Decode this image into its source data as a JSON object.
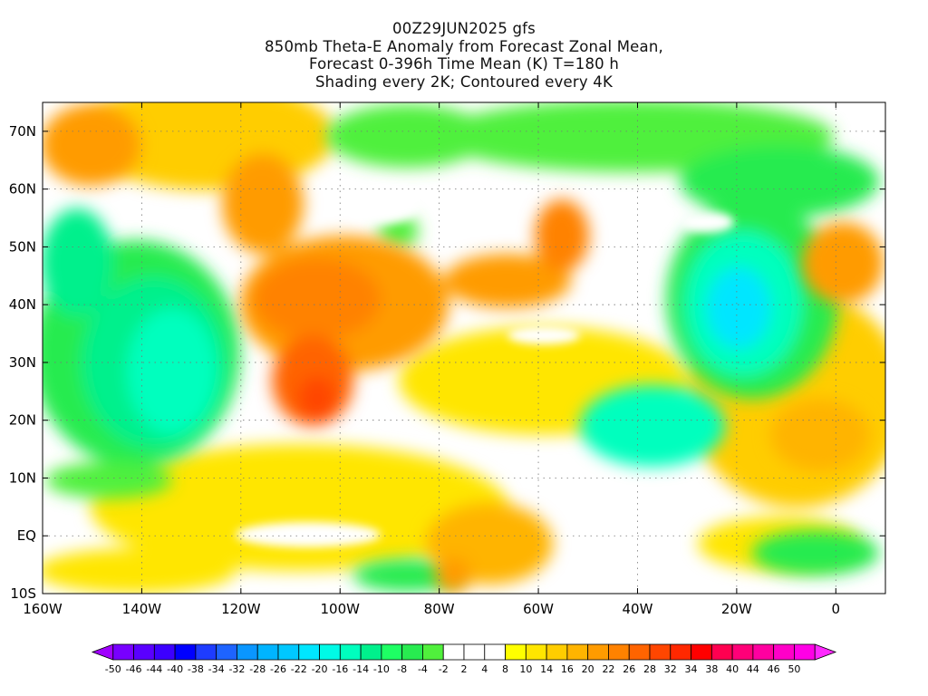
{
  "title_lines": [
    "00Z29JUN2025 gfs",
    "850mb Theta-E Anomaly from Forecast Zonal Mean,",
    "Forecast 0-396h Time Mean (K) T=180 h",
    "Shading every 2K; Contoured every 4K"
  ],
  "map": {
    "lat_labels": [
      "70N",
      "60N",
      "50N",
      "40N",
      "30N",
      "20N",
      "10N",
      "EQ",
      "10S"
    ],
    "lon_labels": [
      "160W",
      "140W",
      "120W",
      "100W",
      "80W",
      "60W",
      "40W",
      "20W",
      "0"
    ]
  },
  "colorbar": {
    "colors": [
      "#a000ff",
      "#7800ff",
      "#5a00ff",
      "#3c00ff",
      "#0000ff",
      "#1e3cff",
      "#1e64ff",
      "#0a96ff",
      "#00b4ff",
      "#00c8ff",
      "#00e6ff",
      "#00fae6",
      "#00ffbe",
      "#00f08c",
      "#1eff64",
      "#28eb50",
      "#50f03c",
      "#ffffff",
      "#ffffff",
      "#ffffff",
      "#ffff00",
      "#ffe600",
      "#ffcd00",
      "#ffb400",
      "#ff9b00",
      "#ff8200",
      "#ff6400",
      "#ff4600",
      "#ff2800",
      "#ff0000",
      "#ff0050",
      "#ff0078",
      "#ff00a0",
      "#ff00c8",
      "#ff00e6",
      "#ff28ff"
    ],
    "labels": [
      "-50",
      "-46",
      "-44",
      "-40",
      "-38",
      "-34",
      "-32",
      "-28",
      "-26",
      "-22",
      "-20",
      "-16",
      "-14",
      "-10",
      "-8",
      "-4",
      "-2",
      "2",
      "4",
      "8",
      "10",
      "14",
      "16",
      "20",
      "22",
      "26",
      "28",
      "32",
      "34",
      "38",
      "40",
      "44",
      "46",
      "50"
    ]
  }
}
